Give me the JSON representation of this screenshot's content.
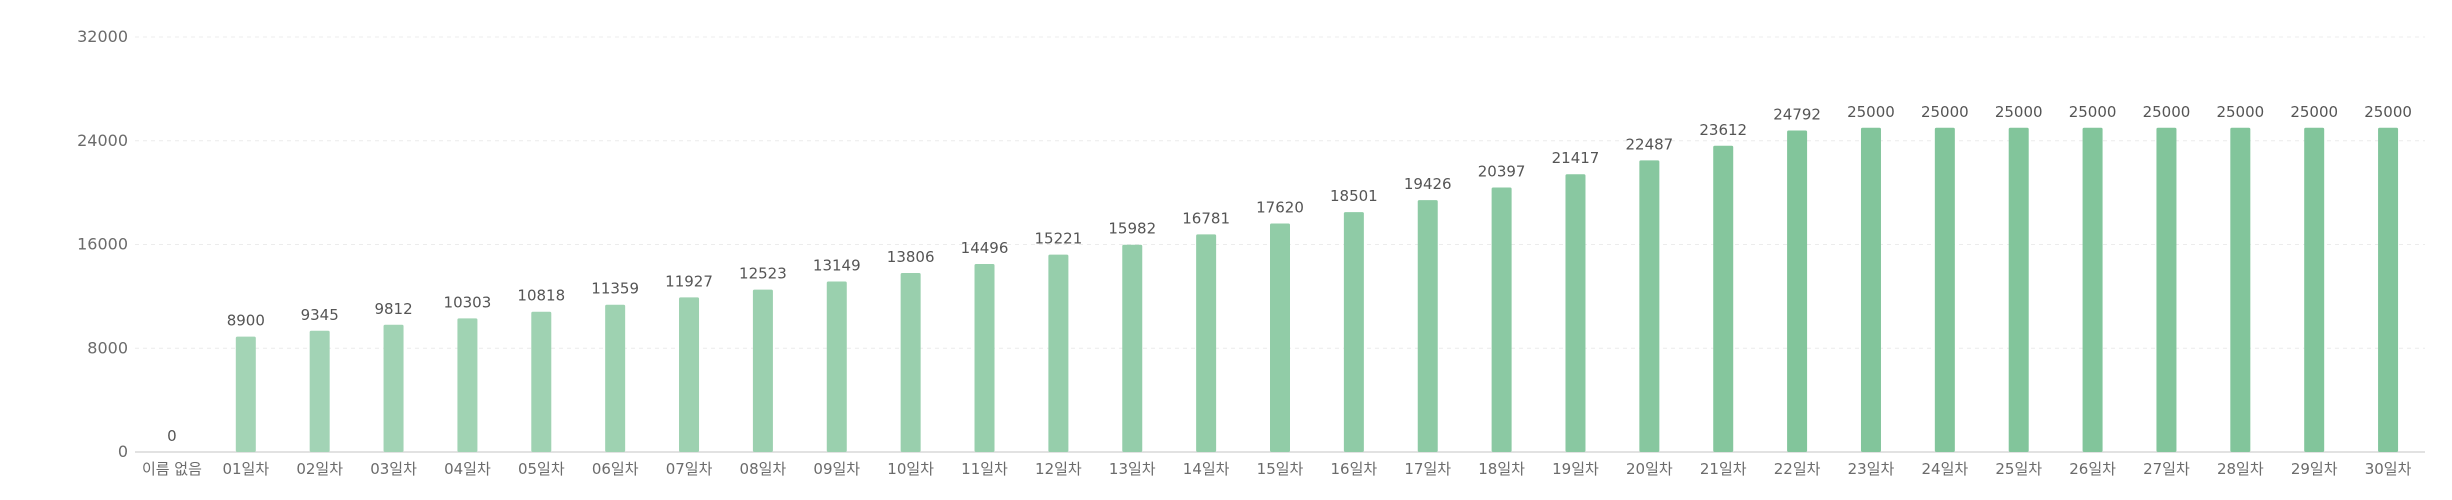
{
  "chart_data": {
    "type": "bar",
    "categories": [
      "이름 없음",
      "01일차",
      "02일차",
      "03일차",
      "04일차",
      "05일차",
      "06일차",
      "07일차",
      "08일차",
      "09일차",
      "10일차",
      "11일차",
      "12일차",
      "13일차",
      "14일차",
      "15일차",
      "16일차",
      "17일차",
      "18일차",
      "19일차",
      "20일차",
      "21일차",
      "22일차",
      "23일차",
      "24일차",
      "25일차",
      "26일차",
      "27일차",
      "28일차",
      "29일차",
      "30일차"
    ],
    "values": [
      0,
      8900,
      9345,
      9812,
      10303,
      10818,
      11359,
      11927,
      12523,
      13149,
      13806,
      14496,
      15221,
      15982,
      16781,
      17620,
      18501,
      19426,
      20397,
      21417,
      22487,
      23612,
      24792,
      25000,
      25000,
      25000,
      25000,
      25000,
      25000,
      25000,
      25000
    ],
    "yticks": [
      0,
      8000,
      16000,
      24000,
      32000
    ],
    "ylim": [
      0,
      32000
    ],
    "grid": true,
    "data_labels": true,
    "bar_color_low": "#b5dcc4",
    "bar_color_high": "#82c59b"
  }
}
